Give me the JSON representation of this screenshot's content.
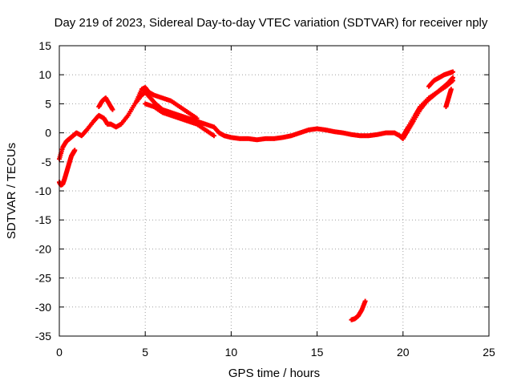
{
  "chart_data": {
    "type": "scatter",
    "title": "Day 219 of 2023, Sidereal Day-to-day VTEC variation (SDTVAR) for receiver nply",
    "xlabel": "GPS time / hours",
    "ylabel": "SDTVAR / TECUs",
    "xlim": [
      0,
      25
    ],
    "ylim": [
      -35,
      15
    ],
    "xticks": [
      0,
      5,
      10,
      15,
      20,
      25
    ],
    "yticks": [
      -35,
      -30,
      -25,
      -20,
      -15,
      -10,
      -5,
      0,
      5,
      10,
      15
    ],
    "grid": true,
    "marker": "plus",
    "series": [
      {
        "name": "SDTVAR",
        "color": "#ff0000",
        "strands": [
          {
            "x": [
              0.0,
              0.2,
              0.4,
              0.6,
              0.8,
              1.0,
              1.3,
              1.6,
              2.0,
              2.3,
              2.6,
              2.8,
              3.0,
              3.3,
              3.6,
              4.0,
              4.4,
              4.8,
              5.0,
              5.3,
              5.6,
              6.0,
              6.5,
              7.0,
              7.5,
              8.0,
              8.5,
              9.0,
              9.3,
              9.6,
              10.0,
              10.5,
              11.0,
              11.5,
              12.0,
              12.5,
              13.0,
              13.5,
              14.0,
              14.5,
              15.0,
              15.5,
              16.0,
              16.5,
              17.0,
              17.5,
              18.0,
              18.5,
              19.0,
              19.5,
              19.8,
              20.0,
              20.3,
              20.6,
              21.0,
              21.4,
              21.8,
              22.2,
              22.6,
              22.9
            ],
            "y": [
              -4.5,
              -2.5,
              -1.5,
              -1.0,
              -0.5,
              0.0,
              -0.5,
              0.5,
              2.0,
              3.0,
              2.5,
              1.5,
              1.5,
              1.0,
              1.5,
              3.0,
              5.0,
              6.5,
              7.0,
              6.0,
              5.0,
              4.0,
              3.5,
              3.0,
              2.5,
              2.0,
              1.5,
              1.0,
              0.0,
              -0.5,
              -0.8,
              -1.0,
              -1.0,
              -1.2,
              -1.0,
              -1.0,
              -0.8,
              -0.5,
              0.0,
              0.5,
              0.7,
              0.5,
              0.2,
              0.0,
              -0.3,
              -0.5,
              -0.5,
              -0.3,
              0.0,
              0.0,
              -0.5,
              -1.0,
              0.5,
              2.0,
              4.0,
              5.5,
              6.5,
              7.5,
              8.5,
              9.5
            ]
          },
          {
            "x": [
              0.0,
              0.1,
              0.2,
              0.3,
              0.4,
              0.5,
              0.6,
              0.7,
              0.8,
              0.9
            ],
            "y": [
              -8.5,
              -9.0,
              -8.8,
              -8.0,
              -7.0,
              -6.0,
              -5.0,
              -4.0,
              -3.5,
              -3.0
            ]
          },
          {
            "x": [
              2.3,
              2.5,
              2.7,
              2.9,
              3.1
            ],
            "y": [
              4.5,
              5.5,
              6.0,
              5.0,
              4.0
            ]
          },
          {
            "x": [
              4.5,
              4.8,
              5.0,
              5.2,
              5.5,
              6.0,
              6.5,
              7.0,
              7.5,
              8.0
            ],
            "y": [
              5.5,
              7.5,
              7.8,
              7.0,
              6.5,
              6.0,
              5.5,
              4.5,
              3.5,
              2.5
            ]
          },
          {
            "x": [
              5.0,
              5.5,
              6.0,
              6.5,
              7.0,
              7.5,
              8.0,
              8.5,
              9.0
            ],
            "y": [
              5.0,
              4.5,
              3.5,
              3.0,
              2.5,
              2.0,
              1.5,
              0.5,
              -0.5
            ]
          },
          {
            "x": [
              17.0,
              17.2,
              17.4,
              17.6,
              17.8
            ],
            "y": [
              -32.2,
              -32.0,
              -31.5,
              -30.5,
              -29.0
            ]
          },
          {
            "x": [
              20.0,
              20.3,
              20.7,
              21.0,
              21.5,
              22.0,
              22.5,
              22.9
            ],
            "y": [
              -0.5,
              1.0,
              3.0,
              4.5,
              6.0,
              7.0,
              8.0,
              9.0
            ]
          },
          {
            "x": [
              21.5,
              21.8,
              22.1,
              22.4,
              22.7,
              22.9
            ],
            "y": [
              8.0,
              9.0,
              9.5,
              10.0,
              10.3,
              10.5
            ]
          },
          {
            "x": [
              22.5,
              22.6,
              22.7,
              22.8
            ],
            "y": [
              4.5,
              5.5,
              6.5,
              7.5
            ]
          }
        ]
      }
    ]
  }
}
